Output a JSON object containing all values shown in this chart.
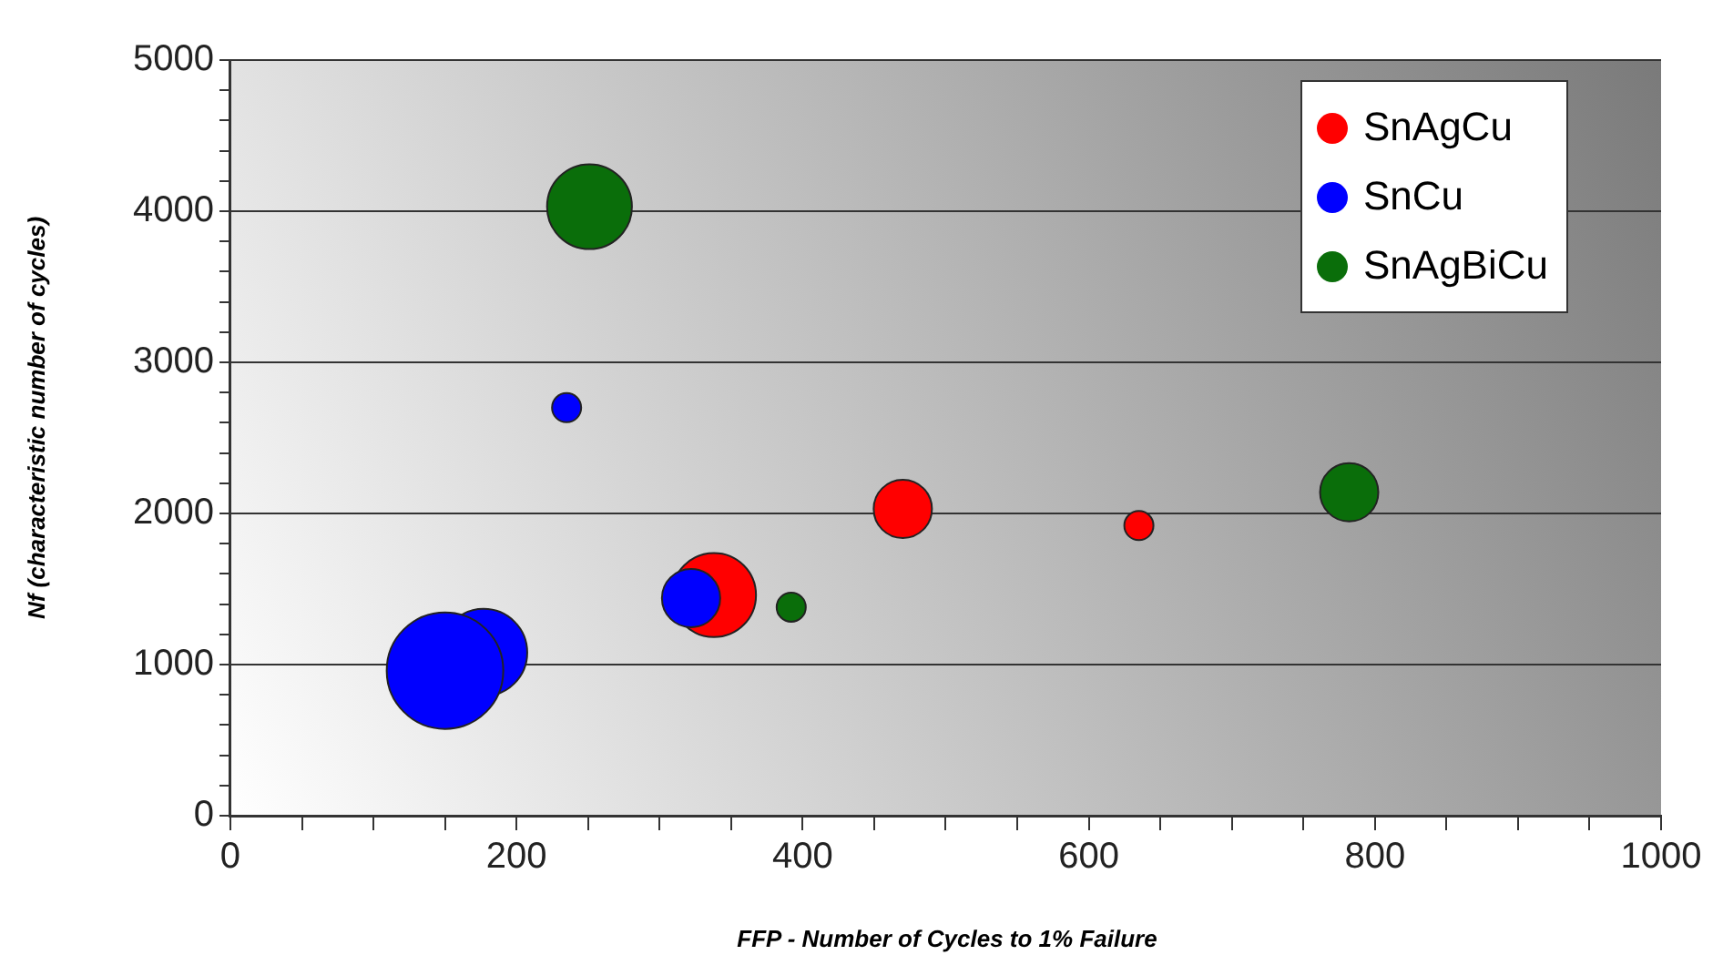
{
  "chart_data": {
    "type": "bubble",
    "xlabel": "FFP - Number of Cycles to 1% Failure",
    "ylabel": "Nf (characteristic number of cycles)",
    "xlim": [
      0,
      1000
    ],
    "xticks": [
      0,
      {
        "value": 50,
        "label": null
      },
      {
        "value": 100,
        "label": null
      },
      {
        "value": 150,
        "label": null
      },
      200,
      {
        "value": 250,
        "label": null
      },
      {
        "value": 300,
        "label": null
      },
      {
        "value": 350,
        "label": null
      },
      400,
      {
        "value": 450,
        "label": null
      },
      {
        "value": 500,
        "label": null
      },
      {
        "value": 550,
        "label": null
      },
      600,
      {
        "value": 650,
        "label": null
      },
      {
        "value": 700,
        "label": null
      },
      {
        "value": 750,
        "label": null
      },
      800,
      {
        "value": 850,
        "label": null
      },
      {
        "value": 900,
        "label": null
      },
      {
        "value": 950,
        "label": null
      },
      1000
    ],
    "ylim": [
      0,
      5000
    ],
    "yticks": [
      0,
      {
        "value": 200,
        "label": null
      },
      {
        "value": 400,
        "label": null
      },
      {
        "value": 600,
        "label": null
      },
      {
        "value": 800,
        "label": null
      },
      1000,
      {
        "value": 1200,
        "label": null
      },
      {
        "value": 1400,
        "label": null
      },
      {
        "value": 1600,
        "label": null
      },
      {
        "value": 1800,
        "label": null
      },
      2000,
      {
        "value": 2200,
        "label": null
      },
      {
        "value": 2400,
        "label": null
      },
      {
        "value": 2600,
        "label": null
      },
      {
        "value": 2800,
        "label": null
      },
      3000,
      {
        "value": 3200,
        "label": null
      },
      {
        "value": 3400,
        "label": null
      },
      {
        "value": 3600,
        "label": null
      },
      {
        "value": 3800,
        "label": null
      },
      4000,
      {
        "value": 4200,
        "label": null
      },
      {
        "value": 4400,
        "label": null
      },
      {
        "value": 4600,
        "label": null
      },
      {
        "value": 4800,
        "label": null
      },
      5000
    ],
    "grid": "y",
    "legend": "top right",
    "series": [
      {
        "name": "SnAgCu",
        "color": "#ff0000",
        "x": [
          470,
          338,
          635
        ],
        "values": [
          2030,
          1460,
          1920
        ],
        "sizes": [
          0.25,
          0.52,
          0.0625
        ]
      },
      {
        "name": "SnCu",
        "color": "#0000ff",
        "x": [
          235,
          177,
          150,
          322
        ],
        "values": [
          2700,
          1080,
          960,
          1440
        ],
        "sizes": [
          0.0625,
          0.56,
          1,
          0.25
        ]
      },
      {
        "name": "SnAgBiCu",
        "color": "#0a6e0a",
        "x": [
          251,
          392,
          782
        ],
        "values": [
          4030,
          1380,
          2140
        ],
        "sizes": [
          0.53,
          0.0625,
          0.25
        ]
      }
    ]
  }
}
